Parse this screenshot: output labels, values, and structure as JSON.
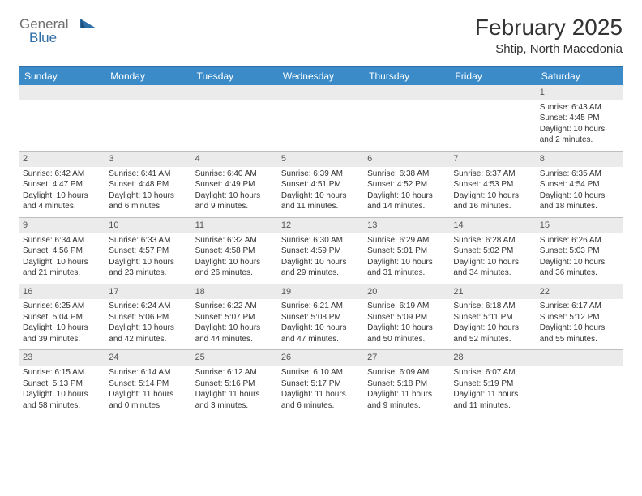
{
  "logo": {
    "word1": "General",
    "word2": "Blue",
    "word1_color": "#6f6f6f",
    "word2_color": "#2f6fa8"
  },
  "title": "February 2025",
  "location": "Shtip, North Macedonia",
  "header_bg": "#3b8bc9",
  "header_border": "#2f6fa8",
  "daynum_bg": "#ebebeb",
  "day_names": [
    "Sunday",
    "Monday",
    "Tuesday",
    "Wednesday",
    "Thursday",
    "Friday",
    "Saturday"
  ],
  "weeks": [
    [
      {
        "n": "",
        "empty": true
      },
      {
        "n": "",
        "empty": true
      },
      {
        "n": "",
        "empty": true
      },
      {
        "n": "",
        "empty": true
      },
      {
        "n": "",
        "empty": true
      },
      {
        "n": "",
        "empty": true
      },
      {
        "n": "1",
        "sr": "6:43 AM",
        "ss": "4:45 PM",
        "dl": "10 hours and 2 minutes."
      }
    ],
    [
      {
        "n": "2",
        "sr": "6:42 AM",
        "ss": "4:47 PM",
        "dl": "10 hours and 4 minutes."
      },
      {
        "n": "3",
        "sr": "6:41 AM",
        "ss": "4:48 PM",
        "dl": "10 hours and 6 minutes."
      },
      {
        "n": "4",
        "sr": "6:40 AM",
        "ss": "4:49 PM",
        "dl": "10 hours and 9 minutes."
      },
      {
        "n": "5",
        "sr": "6:39 AM",
        "ss": "4:51 PM",
        "dl": "10 hours and 11 minutes."
      },
      {
        "n": "6",
        "sr": "6:38 AM",
        "ss": "4:52 PM",
        "dl": "10 hours and 14 minutes."
      },
      {
        "n": "7",
        "sr": "6:37 AM",
        "ss": "4:53 PM",
        "dl": "10 hours and 16 minutes."
      },
      {
        "n": "8",
        "sr": "6:35 AM",
        "ss": "4:54 PM",
        "dl": "10 hours and 18 minutes."
      }
    ],
    [
      {
        "n": "9",
        "sr": "6:34 AM",
        "ss": "4:56 PM",
        "dl": "10 hours and 21 minutes."
      },
      {
        "n": "10",
        "sr": "6:33 AM",
        "ss": "4:57 PM",
        "dl": "10 hours and 23 minutes."
      },
      {
        "n": "11",
        "sr": "6:32 AM",
        "ss": "4:58 PM",
        "dl": "10 hours and 26 minutes."
      },
      {
        "n": "12",
        "sr": "6:30 AM",
        "ss": "4:59 PM",
        "dl": "10 hours and 29 minutes."
      },
      {
        "n": "13",
        "sr": "6:29 AM",
        "ss": "5:01 PM",
        "dl": "10 hours and 31 minutes."
      },
      {
        "n": "14",
        "sr": "6:28 AM",
        "ss": "5:02 PM",
        "dl": "10 hours and 34 minutes."
      },
      {
        "n": "15",
        "sr": "6:26 AM",
        "ss": "5:03 PM",
        "dl": "10 hours and 36 minutes."
      }
    ],
    [
      {
        "n": "16",
        "sr": "6:25 AM",
        "ss": "5:04 PM",
        "dl": "10 hours and 39 minutes."
      },
      {
        "n": "17",
        "sr": "6:24 AM",
        "ss": "5:06 PM",
        "dl": "10 hours and 42 minutes."
      },
      {
        "n": "18",
        "sr": "6:22 AM",
        "ss": "5:07 PM",
        "dl": "10 hours and 44 minutes."
      },
      {
        "n": "19",
        "sr": "6:21 AM",
        "ss": "5:08 PM",
        "dl": "10 hours and 47 minutes."
      },
      {
        "n": "20",
        "sr": "6:19 AM",
        "ss": "5:09 PM",
        "dl": "10 hours and 50 minutes."
      },
      {
        "n": "21",
        "sr": "6:18 AM",
        "ss": "5:11 PM",
        "dl": "10 hours and 52 minutes."
      },
      {
        "n": "22",
        "sr": "6:17 AM",
        "ss": "5:12 PM",
        "dl": "10 hours and 55 minutes."
      }
    ],
    [
      {
        "n": "23",
        "sr": "6:15 AM",
        "ss": "5:13 PM",
        "dl": "10 hours and 58 minutes."
      },
      {
        "n": "24",
        "sr": "6:14 AM",
        "ss": "5:14 PM",
        "dl": "11 hours and 0 minutes."
      },
      {
        "n": "25",
        "sr": "6:12 AM",
        "ss": "5:16 PM",
        "dl": "11 hours and 3 minutes."
      },
      {
        "n": "26",
        "sr": "6:10 AM",
        "ss": "5:17 PM",
        "dl": "11 hours and 6 minutes."
      },
      {
        "n": "27",
        "sr": "6:09 AM",
        "ss": "5:18 PM",
        "dl": "11 hours and 9 minutes."
      },
      {
        "n": "28",
        "sr": "6:07 AM",
        "ss": "5:19 PM",
        "dl": "11 hours and 11 minutes."
      },
      {
        "n": "",
        "empty": true
      }
    ]
  ],
  "labels": {
    "sunrise": "Sunrise:",
    "sunset": "Sunset:",
    "daylight": "Daylight:"
  }
}
